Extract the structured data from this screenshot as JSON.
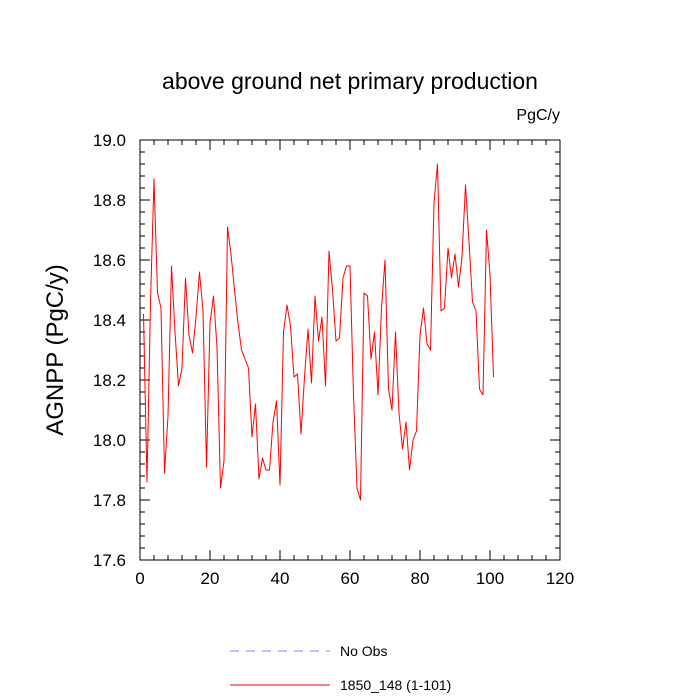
{
  "chart_data": {
    "type": "line",
    "title": "above ground net primary production",
    "units_label": "PgC/y",
    "xlabel": "",
    "ylabel": "AGNPP  (PgC/y)",
    "xlim": [
      0,
      120
    ],
    "ylim": [
      17.6,
      19.0
    ],
    "x_ticks": [
      0,
      20,
      40,
      60,
      80,
      100,
      120
    ],
    "y_ticks": [
      17.6,
      17.8,
      18.0,
      18.2,
      18.4,
      18.6,
      18.8,
      19.0
    ],
    "x_tick_labels": [
      "0",
      "20",
      "40",
      "60",
      "80",
      "100",
      "120"
    ],
    "y_tick_labels": [
      "17.6",
      "17.8",
      "18.0",
      "18.2",
      "18.4",
      "18.6",
      "18.8",
      "19.0"
    ],
    "series": [
      {
        "name": "1850_148 (1-101)",
        "color": "#ff0000",
        "x_start": 1,
        "values": [
          18.42,
          17.86,
          18.46,
          18.87,
          18.49,
          18.44,
          17.89,
          18.08,
          18.58,
          18.36,
          18.18,
          18.24,
          18.54,
          18.35,
          18.29,
          18.41,
          18.56,
          18.43,
          17.91,
          18.39,
          18.48,
          18.31,
          17.84,
          17.93,
          18.71,
          18.62,
          18.5,
          18.39,
          18.3,
          18.27,
          18.24,
          18.01,
          18.12,
          17.87,
          17.94,
          17.9,
          17.9,
          18.06,
          18.13,
          17.85,
          18.36,
          18.45,
          18.38,
          18.21,
          18.22,
          18.02,
          18.21,
          18.37,
          18.19,
          18.48,
          18.33,
          18.41,
          18.18,
          18.63,
          18.5,
          18.33,
          18.34,
          18.54,
          18.58,
          18.58,
          18.15,
          17.84,
          17.8,
          18.49,
          18.48,
          18.27,
          18.36,
          18.15,
          18.44,
          18.6,
          18.17,
          18.1,
          18.36,
          18.09,
          17.97,
          18.06,
          17.9,
          18.0,
          18.03,
          18.35,
          18.44,
          18.32,
          18.3,
          18.79,
          18.92,
          18.43,
          18.44,
          18.64,
          18.54,
          18.62,
          18.51,
          18.61,
          18.85,
          18.66,
          18.46,
          18.43,
          18.17,
          18.15,
          18.7,
          18.55,
          18.21
        ]
      }
    ],
    "legend": [
      {
        "label": "No Obs",
        "color": "#8080ff",
        "style": "dashed"
      },
      {
        "label": "1850_148 (1-101)",
        "color": "#ff0000",
        "style": "solid"
      }
    ],
    "legend_position": "bottom-center"
  }
}
